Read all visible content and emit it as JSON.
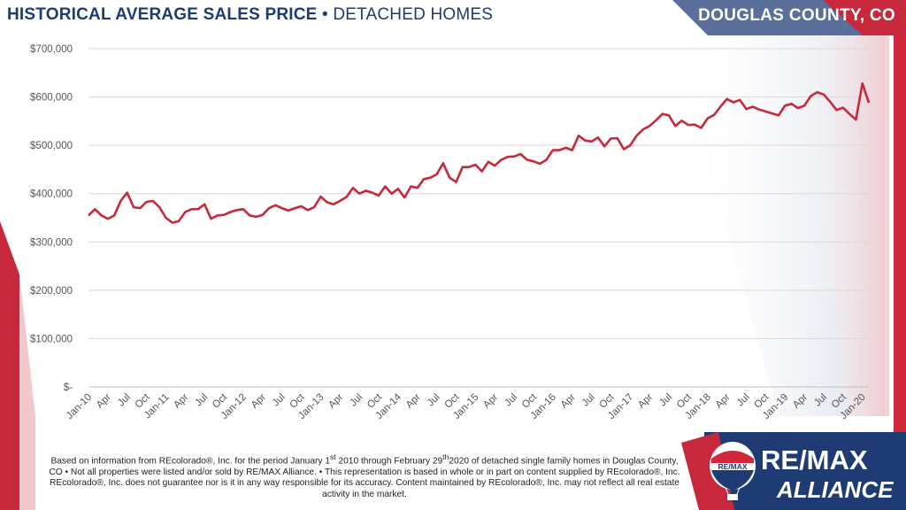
{
  "header": {
    "title_bold": "HISTORICAL AVERAGE SALES PRICE",
    "title_sep": " • ",
    "title_rest": "DETACHED HOMES",
    "county": "DOUGLAS COUNTY, CO"
  },
  "footnote": {
    "p1": "Based on information from REcolorado®, Inc. for the period January 1",
    "sup1": "st",
    "p2": " 2010 through February 29",
    "sup2": "th",
    "p3": "2020 of detached single family homes in Douglas County, CO • Not all properties were listed and/or sold by RE/MAX Alliance. • This representation is based in whole or in part on content supplied by REcolorado®, Inc. REcolorado®, Inc. does not guarantee nor is it in any way responsible for its accuracy. Content maintained by REcolorado®, Inc. may not reflect all real estate activity in the market."
  },
  "logo": {
    "balloon_text": "RE/MAX",
    "brand": "RE/MAX",
    "sub": "ALLIANCE"
  },
  "colors": {
    "line": "#c8283c",
    "navy": "#1f3b73",
    "red": "#d2283c"
  },
  "chart_data": {
    "type": "line",
    "title": "HISTORICAL AVERAGE SALES PRICE • DETACHED HOMES",
    "ylim": [
      0,
      700000
    ],
    "y_ticks": [
      0,
      100000,
      200000,
      300000,
      400000,
      500000,
      600000,
      700000
    ],
    "y_tick_labels": [
      "$-",
      "$100,000",
      "$200,000",
      "$300,000",
      "$400,000",
      "$500,000",
      "$600,000",
      "$700,000"
    ],
    "x_tick_labels": [
      "Jan-10",
      "Apr",
      "Jul",
      "Oct",
      "Jan-11",
      "Apr",
      "Jul",
      "Oct",
      "Jan-12",
      "Apr",
      "Jul",
      "Oct",
      "Jan-13",
      "Apr",
      "Jul",
      "Oct",
      "Jan-14",
      "Apr",
      "Jul",
      "Oct",
      "Jan-15",
      "Apr",
      "Jul",
      "Oct",
      "Jan-16",
      "Apr",
      "Jul",
      "Oct",
      "Jan-17",
      "Apr",
      "Jul",
      "Oct",
      "Jan-18",
      "Apr",
      "Jul",
      "Oct",
      "Jan-19",
      "Apr",
      "Jul",
      "Oct",
      "Jan-20"
    ],
    "x_tick_every": 3,
    "grid": true,
    "legend": "none",
    "series": [
      {
        "values": [
          355000,
          368000,
          355000,
          348000,
          355000,
          385000,
          402000,
          372000,
          370000,
          383000,
          385000,
          372000,
          350000,
          340000,
          343000,
          362000,
          368000,
          368000,
          378000,
          348000,
          355000,
          356000,
          362000,
          366000,
          368000,
          355000,
          352000,
          356000,
          370000,
          376000,
          370000,
          365000,
          370000,
          374000,
          366000,
          372000,
          394000,
          382000,
          378000,
          385000,
          393000,
          412000,
          400000,
          406000,
          402000,
          396000,
          415000,
          400000,
          410000,
          392000,
          415000,
          412000,
          430000,
          433000,
          440000,
          463000,
          433000,
          424000,
          455000,
          455000,
          460000,
          446000,
          466000,
          458000,
          470000,
          476000,
          477000,
          482000,
          470000,
          467000,
          462000,
          470000,
          490000,
          490000,
          495000,
          490000,
          520000,
          510000,
          508000,
          516000,
          498000,
          514000,
          515000,
          492000,
          500000,
          520000,
          533000,
          540000,
          552000,
          565000,
          562000,
          540000,
          551000,
          542000,
          543000,
          536000,
          556000,
          563000,
          580000,
          596000,
          589000,
          594000,
          575000,
          580000,
          574000,
          570000,
          566000,
          562000,
          582000,
          586000,
          577000,
          582000,
          602000,
          610000,
          605000,
          590000,
          573000,
          578000,
          565000,
          553000,
          628000,
          588000
        ]
      }
    ]
  }
}
